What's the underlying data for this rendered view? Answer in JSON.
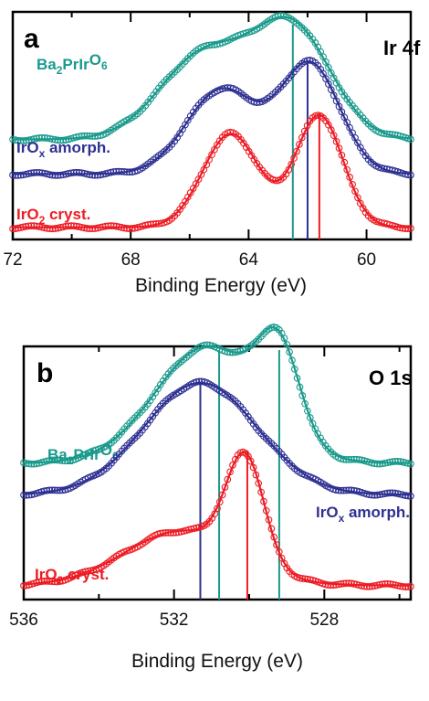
{
  "colors": {
    "teal": "#1a9a8c",
    "navy": "#2e3192",
    "red": "#ed1c24",
    "axis": "#000000"
  },
  "chart_data": [
    {
      "panel": "a",
      "type": "line",
      "title": "Ir 4f",
      "xlabel": "Binding Energy (eV)",
      "x_reversed": true,
      "xlim": [
        72,
        58.5
      ],
      "x_ticks": [
        72,
        68,
        64,
        60
      ],
      "y_ticks": false,
      "series": [
        {
          "name": "Ba2PrIrO6",
          "name_parts": [
            "Ba",
            "2",
            "PrIr",
            "O",
            "6"
          ],
          "color": "teal",
          "baseline": 88,
          "peaks": [
            {
              "x": 65.5,
              "h": 0.56,
              "w": 1.5
            },
            {
              "x": 62.5,
              "h": 0.72,
              "w": 1.3
            }
          ],
          "reference_line": 62.5
        },
        {
          "name": "IrOx amorph.",
          "name_parts": [
            "IrO",
            "x",
            " amorph."
          ],
          "color": "navy",
          "baseline": 10,
          "peaks": [
            {
              "x": 64.9,
              "h": 0.56,
              "w": 1.2
            },
            {
              "x": 61.9,
              "h": 0.72,
              "w": 1.0
            }
          ],
          "reference_line": 62.0
        },
        {
          "name": "IrO2 cryst.",
          "name_parts": [
            "IrO",
            "2",
            " cryst."
          ],
          "color": "red",
          "baseline": 2,
          "peaks": [
            {
              "x": 64.6,
              "h": 0.62,
              "w": 0.95
            },
            {
              "x": 61.6,
              "h": 0.74,
              "w": 0.8
            }
          ],
          "reference_line": 61.6
        }
      ]
    },
    {
      "panel": "b",
      "type": "line",
      "title": "O 1s",
      "xlabel": "Binding Energy (eV)",
      "x_reversed": true,
      "xlim": [
        536,
        525.7
      ],
      "x_ticks": [
        536,
        532,
        528
      ],
      "y_ticks": false,
      "series": [
        {
          "name": "Ba2PrIrO6",
          "name_parts": [
            "Ba",
            "2",
            "PrIr",
            "O",
            "6"
          ],
          "color": "teal",
          "baseline": 8,
          "peaks": [
            {
              "x": 531.1,
              "h": 0.75,
              "w": 1.4
            },
            {
              "x": 529.2,
              "h": 0.55,
              "w": 0.55
            }
          ],
          "reference_lines": [
            530.8,
            529.2
          ]
        },
        {
          "name": "IrOx amorph.",
          "name_parts": [
            "IrO",
            "x",
            " amorph."
          ],
          "color": "navy",
          "baseline": 10,
          "peaks": [
            {
              "x": 531.3,
              "h": 0.72,
              "w": 1.5
            }
          ],
          "reference_line": 531.3
        },
        {
          "name": "IrO2 cryst.",
          "name_parts": [
            "IrO",
            "2",
            " cryst."
          ],
          "color": "red",
          "baseline": 3,
          "peaks": [
            {
              "x": 531.8,
              "h": 0.35,
              "w": 1.5
            },
            {
              "x": 530.1,
              "h": 0.67,
              "w": 0.5
            }
          ],
          "reference_line": 530.05
        }
      ]
    }
  ]
}
